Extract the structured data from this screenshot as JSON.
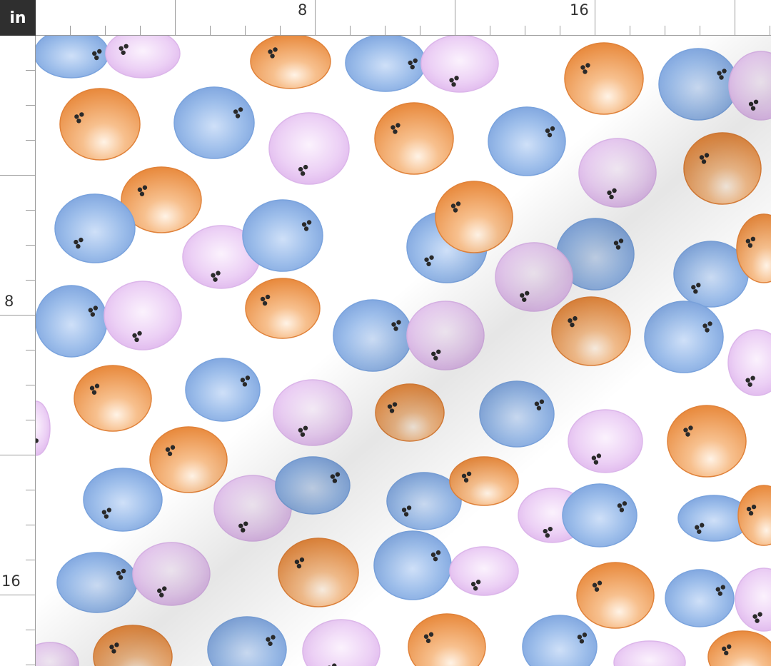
{
  "ruler": {
    "unit": "in",
    "top_labels": [
      "8",
      "16"
    ],
    "left_labels": [
      "8",
      "16"
    ]
  },
  "fabric": {
    "background": "#ffffff",
    "motif": "bowling-ball",
    "ball_colors": {
      "orange": "#f0a35f",
      "blue": "#8fb3e6",
      "pink": "#e8c6f0"
    }
  }
}
